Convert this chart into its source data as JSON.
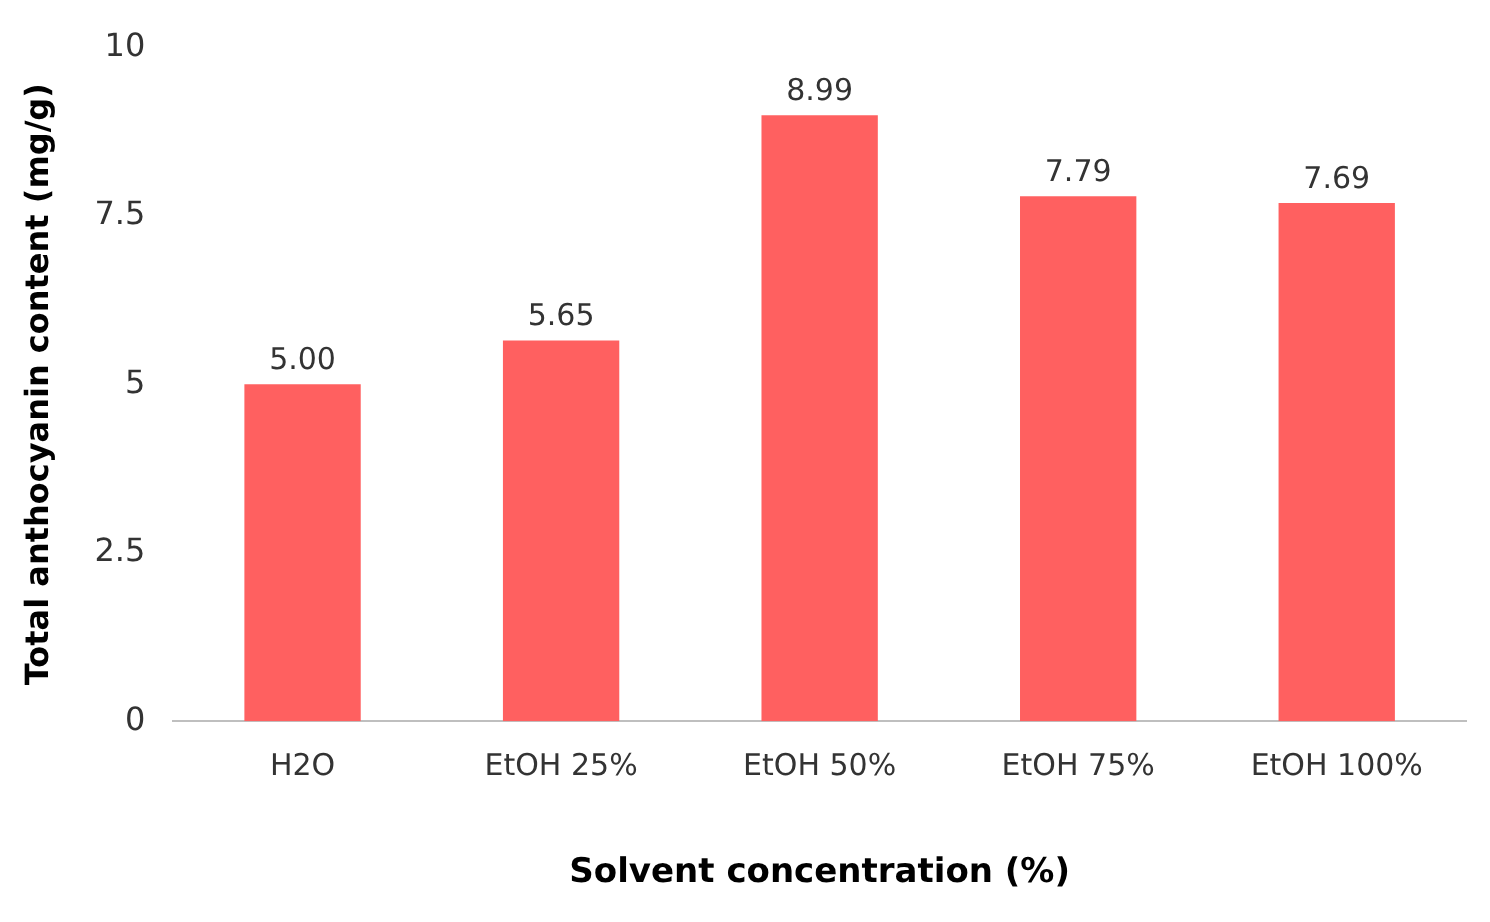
{
  "chart_data": {
    "type": "bar",
    "xlabel": "Solvent concentration (%)",
    "ylabel": "Total anthocyanin content (mg/g)",
    "categories": [
      "H2O",
      "EtOH 25%",
      "EtOH 50%",
      "EtOH 75%",
      "EtOH 100%"
    ],
    "values": [
      5.0,
      5.65,
      8.99,
      7.79,
      7.69
    ],
    "value_labels": [
      "5.00",
      "5.65",
      "8.99",
      "7.79",
      "7.69"
    ],
    "color": "#ff6060",
    "ylim": [
      0,
      10
    ],
    "yticks": [
      0,
      2.5,
      5,
      7.5,
      10
    ],
    "grid": false,
    "legend": false
  }
}
